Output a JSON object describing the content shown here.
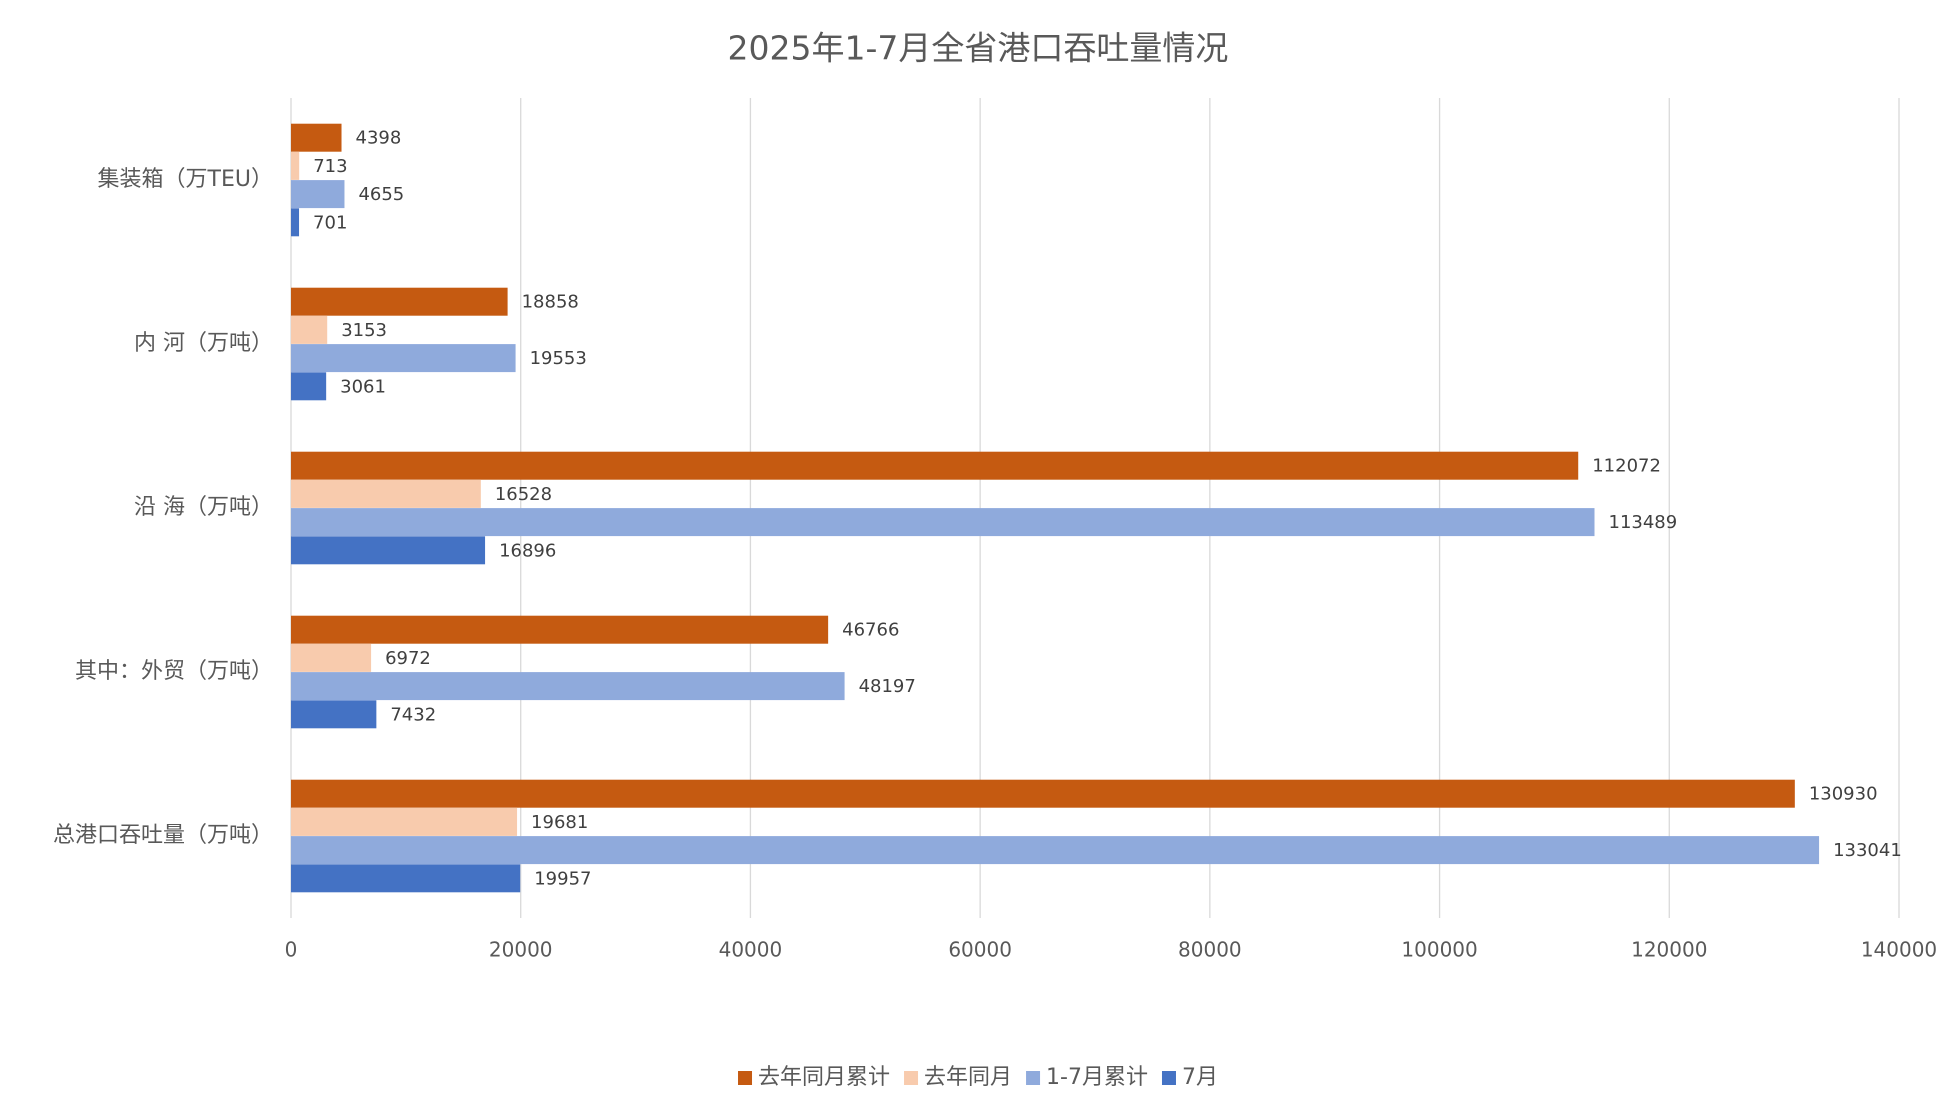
{
  "chart_data": {
    "type": "barh",
    "title": "2025年1-7月全省港口吞吐量情况",
    "categories": [
      "集装箱（万TEU）",
      "内 河（万吨）",
      "沿 海（万吨）",
      "其中：外贸（万吨）",
      "总港口吞吐量（万吨）"
    ],
    "series": [
      {
        "name": "去年同月累计",
        "color": "#c55a11",
        "values": [
          4398,
          18858,
          112072,
          46766,
          130930
        ]
      },
      {
        "name": "去年同月",
        "color": "#f8cbad",
        "values": [
          713,
          3153,
          16528,
          6972,
          19681
        ]
      },
      {
        "name": "1-7月累计",
        "color": "#8faadc",
        "values": [
          4655,
          19553,
          113489,
          48197,
          133041
        ]
      },
      {
        "name": "7月",
        "color": "#4472c4",
        "values": [
          701,
          3061,
          16896,
          7432,
          19957
        ]
      }
    ],
    "xlim": [
      0,
      140000
    ],
    "xticks": [
      0,
      20000,
      40000,
      60000,
      80000,
      100000,
      120000,
      140000
    ],
    "grid": true,
    "legend": "bottom"
  }
}
